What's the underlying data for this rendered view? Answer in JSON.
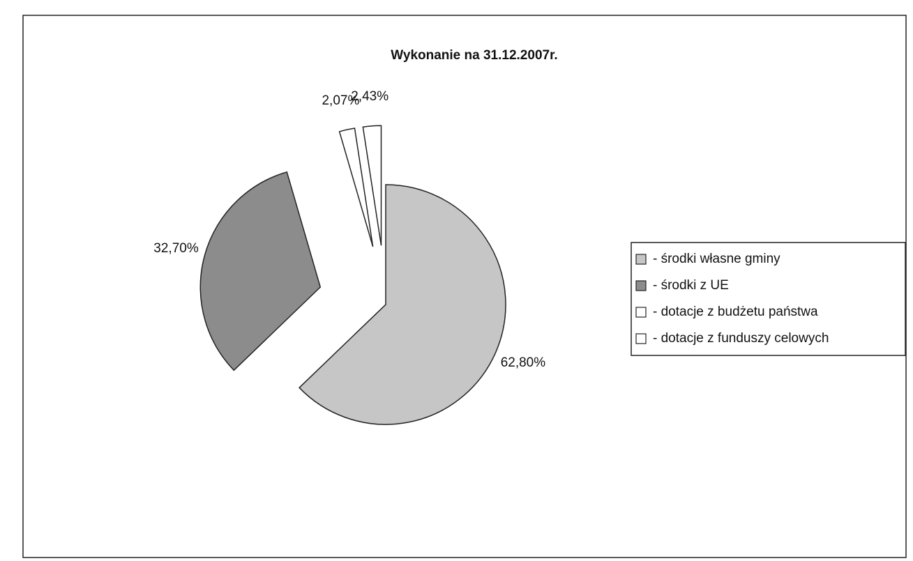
{
  "chart_data": {
    "type": "pie",
    "title": "Wykonanie na 31.12.2007r.",
    "categories": [
      "- środki własne gminy",
      "- środki z UE",
      "- dotacje z budżetu państwa",
      "- dotacje z funduszy celowych"
    ],
    "values": [
      62.8,
      32.7,
      2.07,
      2.43
    ],
    "value_labels": [
      "62,80%",
      "32,70%",
      "2,07%",
      "2,43%"
    ],
    "colors": [
      "#c6c6c6",
      "#8c8c8c",
      "#ffffff",
      "#ffffff"
    ],
    "legend": "right"
  }
}
